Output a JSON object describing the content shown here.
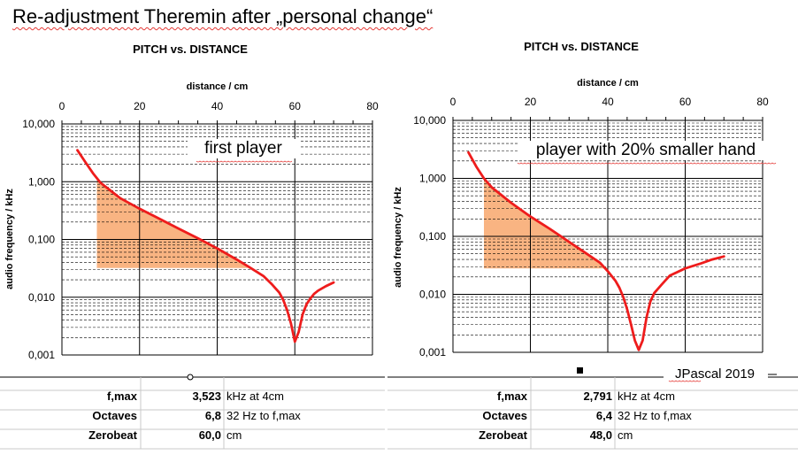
{
  "page": {
    "title": "Re-adjustment Theremin after „personal change“"
  },
  "chart_data": [
    {
      "type": "line",
      "title": "PITCH vs. DISTANCE",
      "xlabel": "distance / cm",
      "ylabel": "audio frequency / kHz",
      "xlim": [
        0,
        80
      ],
      "ylim": [
        0.001,
        10
      ],
      "y_scale": "log",
      "x_ticks": [
        "0",
        "20",
        "40",
        "60",
        "80"
      ],
      "y_ticks": [
        "10,000",
        "1,000",
        "0,100",
        "0,010",
        "0,001"
      ],
      "x_axis_position": "top",
      "grid": true,
      "annotation": "first player",
      "series": [
        {
          "x": [
            4,
            6,
            8,
            10,
            15,
            20,
            25,
            30,
            35,
            40,
            45,
            48,
            50,
            52,
            54,
            56,
            57,
            58,
            59,
            60,
            61,
            62,
            63,
            64,
            65,
            66,
            68,
            70
          ],
          "y": [
            3.5,
            2.2,
            1.4,
            0.95,
            0.52,
            0.34,
            0.23,
            0.155,
            0.105,
            0.07,
            0.045,
            0.034,
            0.028,
            0.023,
            0.017,
            0.012,
            0.009,
            0.006,
            0.0035,
            0.0017,
            0.0025,
            0.005,
            0.0075,
            0.0095,
            0.0115,
            0.013,
            0.0155,
            0.018
          ]
        }
      ],
      "shaded_region": {
        "upper_x": [
          9,
          10,
          15,
          20,
          25,
          30,
          35,
          40,
          45,
          48
        ],
        "upper_y": [
          1.1,
          0.95,
          0.52,
          0.34,
          0.23,
          0.155,
          0.105,
          0.07,
          0.045,
          0.032
        ],
        "floor_y": 0.032,
        "color": "#f9b482"
      },
      "stats": [
        {
          "label": "f,max",
          "value": "3,523",
          "unit": "kHz at 4cm"
        },
        {
          "label": "Octaves",
          "value": "6,8",
          "unit": "32 Hz to f,max"
        },
        {
          "label": "Zerobeat",
          "value": "60,0",
          "unit": "cm"
        }
      ]
    },
    {
      "type": "line",
      "title": "PITCH vs. DISTANCE",
      "xlabel": "distance / cm",
      "ylabel": "audio frequency / kHz",
      "xlim": [
        0,
        80
      ],
      "ylim": [
        0.001,
        10
      ],
      "y_scale": "log",
      "x_ticks": [
        "0",
        "20",
        "40",
        "60",
        "80"
      ],
      "y_ticks": [
        "10,000",
        "1,000",
        "0,100",
        "0,010",
        "0,001"
      ],
      "x_axis_position": "top",
      "grid": true,
      "annotation": "player with 20% smaller hand",
      "series": [
        {
          "x": [
            4,
            6,
            8,
            10,
            15,
            20,
            25,
            30,
            35,
            38,
            40,
            42,
            43,
            44,
            45,
            46,
            47,
            48,
            49,
            50,
            51,
            52,
            54,
            56,
            60,
            64,
            67,
            70
          ],
          "y": [
            2.8,
            1.6,
            1.0,
            0.7,
            0.38,
            0.22,
            0.135,
            0.08,
            0.048,
            0.035,
            0.025,
            0.017,
            0.013,
            0.009,
            0.0055,
            0.003,
            0.0016,
            0.0011,
            0.0016,
            0.004,
            0.0075,
            0.0105,
            0.015,
            0.021,
            0.028,
            0.034,
            0.04,
            0.045
          ]
        }
      ],
      "shaded_region": {
        "upper_x": [
          8,
          10,
          15,
          20,
          25,
          30,
          35,
          38,
          40
        ],
        "upper_y": [
          1.0,
          0.7,
          0.38,
          0.22,
          0.135,
          0.08,
          0.048,
          0.035,
          0.028
        ],
        "floor_y": 0.028,
        "color": "#f9b482"
      },
      "stats": [
        {
          "label": "f,max",
          "value": "2,791",
          "unit": "kHz at 4cm"
        },
        {
          "label": "Octaves",
          "value": "6,4",
          "unit": "32 Hz to f,max"
        },
        {
          "label": "Zerobeat",
          "value": "48,0",
          "unit": "cm"
        }
      ]
    }
  ],
  "credit": "JPascal 2019",
  "colors": {
    "curve": "#ee1c1c",
    "shade": "#f9b482",
    "grid": "#000000",
    "stats_border": "#c8c8c8"
  }
}
